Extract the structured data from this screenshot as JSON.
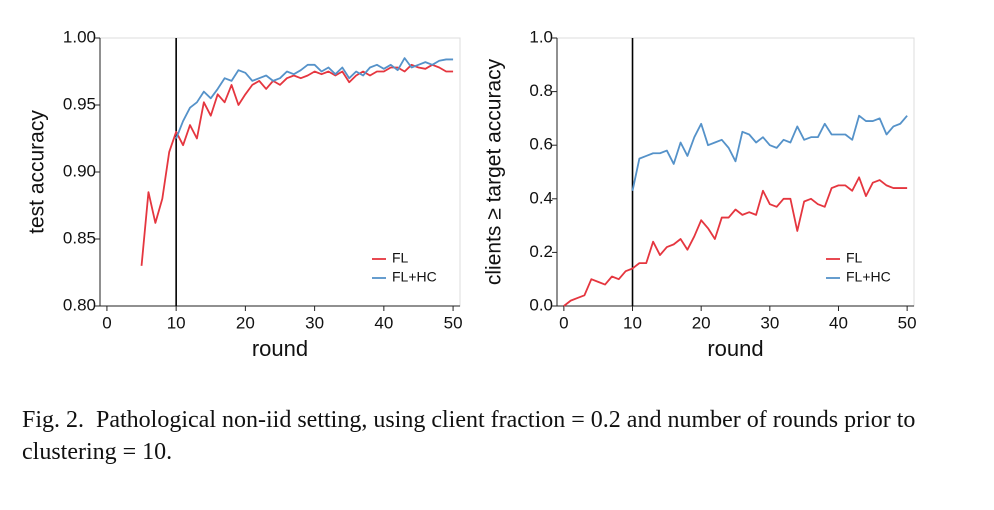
{
  "chart_data": [
    {
      "type": "line",
      "xlabel": "round",
      "ylabel": "test accuracy",
      "x": [
        0,
        1,
        2,
        3,
        4,
        5,
        6,
        7,
        8,
        9,
        10,
        11,
        12,
        13,
        14,
        15,
        16,
        17,
        18,
        19,
        20,
        21,
        22,
        23,
        24,
        25,
        26,
        27,
        28,
        29,
        30,
        31,
        32,
        33,
        34,
        35,
        36,
        37,
        38,
        39,
        40,
        41,
        42,
        43,
        44,
        45,
        46,
        47,
        48,
        49,
        50
      ],
      "series": [
        {
          "name": "FL",
          "color": "#e5363f",
          "values": [
            null,
            null,
            null,
            null,
            null,
            0.83,
            0.885,
            0.862,
            0.88,
            0.915,
            0.93,
            0.92,
            0.935,
            0.925,
            0.952,
            0.942,
            0.958,
            0.952,
            0.965,
            0.95,
            0.958,
            0.965,
            0.968,
            0.962,
            0.968,
            0.965,
            0.97,
            0.972,
            0.97,
            0.972,
            0.975,
            0.973,
            0.975,
            0.972,
            0.975,
            0.967,
            0.972,
            0.975,
            0.972,
            0.975,
            0.975,
            0.978,
            0.978,
            0.975,
            0.98,
            0.978,
            0.977,
            0.98,
            0.978,
            0.975,
            0.975
          ]
        },
        {
          "name": "FL+HC",
          "color": "#5592c9",
          "values": [
            null,
            null,
            null,
            null,
            null,
            null,
            null,
            null,
            null,
            null,
            0.925,
            0.938,
            0.948,
            0.952,
            0.96,
            0.955,
            0.962,
            0.97,
            0.968,
            0.976,
            0.974,
            0.968,
            0.97,
            0.972,
            0.968,
            0.97,
            0.975,
            0.973,
            0.976,
            0.98,
            0.98,
            0.975,
            0.978,
            0.973,
            0.978,
            0.97,
            0.975,
            0.972,
            0.978,
            0.98,
            0.977,
            0.98,
            0.976,
            0.985,
            0.978,
            0.98,
            0.982,
            0.98,
            0.983,
            0.984,
            0.984
          ]
        }
      ],
      "vline": 10,
      "xlim": [
        -1,
        51
      ],
      "xticks": [
        0,
        10,
        20,
        30,
        40,
        50
      ],
      "ylim": [
        0.8,
        1.0
      ],
      "yticks": [
        {
          "value": 0.8,
          "label": "0.80"
        },
        0.85,
        {
          "value": 0.9,
          "label": "0.90"
        },
        0.95,
        {
          "value": 1,
          "label": "1.00"
        }
      ],
      "legend": "lower right"
    },
    {
      "type": "line",
      "xlabel": "round",
      "ylabel": "clients ≥ target accuracy",
      "x": [
        0,
        1,
        2,
        3,
        4,
        5,
        6,
        7,
        8,
        9,
        10,
        11,
        12,
        13,
        14,
        15,
        16,
        17,
        18,
        19,
        20,
        21,
        22,
        23,
        24,
        25,
        26,
        27,
        28,
        29,
        30,
        31,
        32,
        33,
        34,
        35,
        36,
        37,
        38,
        39,
        40,
        41,
        42,
        43,
        44,
        45,
        46,
        47,
        48,
        49,
        50
      ],
      "series": [
        {
          "name": "FL",
          "color": "#e5363f",
          "values": [
            0.0,
            0.02,
            0.03,
            0.04,
            0.1,
            0.09,
            0.08,
            0.11,
            0.1,
            0.13,
            0.14,
            0.16,
            0.16,
            0.24,
            0.19,
            0.22,
            0.23,
            0.25,
            0.21,
            0.26,
            0.32,
            0.29,
            0.25,
            0.33,
            0.33,
            0.36,
            0.34,
            0.35,
            0.34,
            0.43,
            0.38,
            0.37,
            0.4,
            0.4,
            0.28,
            0.39,
            0.4,
            0.38,
            0.37,
            0.44,
            0.45,
            0.45,
            0.43,
            0.48,
            0.41,
            0.46,
            0.47,
            0.45,
            0.44,
            0.44,
            0.44
          ]
        },
        {
          "name": "FL+HC",
          "color": "#5592c9",
          "values": [
            null,
            null,
            null,
            null,
            null,
            null,
            null,
            null,
            null,
            null,
            0.43,
            0.55,
            0.56,
            0.57,
            0.57,
            0.58,
            0.53,
            0.61,
            0.56,
            0.63,
            0.68,
            0.6,
            0.61,
            0.62,
            0.59,
            0.54,
            0.65,
            0.64,
            0.61,
            0.63,
            0.6,
            0.59,
            0.62,
            0.61,
            0.67,
            0.62,
            0.63,
            0.63,
            0.68,
            0.64,
            0.64,
            0.64,
            0.62,
            0.71,
            0.69,
            0.69,
            0.7,
            0.64,
            0.67,
            0.68,
            0.71
          ]
        }
      ],
      "vline": 10,
      "xlim": [
        -1,
        51
      ],
      "xticks": [
        0,
        10,
        20,
        30,
        40,
        50
      ],
      "ylim": [
        0,
        1.0
      ],
      "yticks": [
        {
          "value": 0,
          "label": "0.0"
        },
        0.2,
        0.4,
        0.6,
        0.8,
        {
          "value": 1,
          "label": "1.0"
        }
      ],
      "legend": "lower right"
    }
  ],
  "caption": "Fig. 2.  Pathological non-iid setting, using client fraction = 0.2 and number of rounds prior to clustering = 10."
}
